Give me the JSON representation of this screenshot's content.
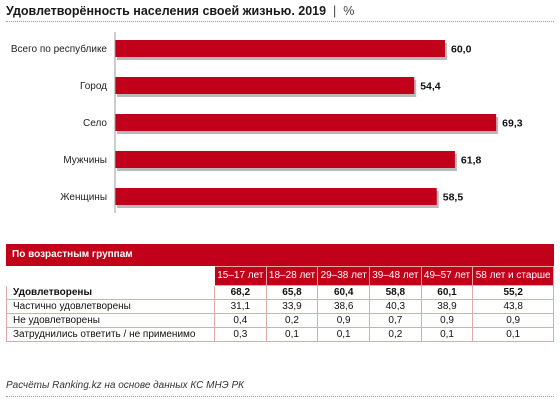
{
  "title": "Удовлетворённость населения своей жизнью. 2019",
  "unit": "%",
  "chart_data": {
    "type": "bar",
    "orientation": "horizontal",
    "categories": [
      "Всего по республике",
      "Город",
      "Село",
      "Мужчины",
      "Женщины"
    ],
    "values": [
      60.0,
      54.4,
      69.3,
      61.8,
      58.5
    ],
    "value_labels": [
      "60,0",
      "54,4",
      "69,3",
      "61,8",
      "58,5"
    ],
    "xlim": [
      0,
      70
    ],
    "color": "#c1001a",
    "grid": false
  },
  "age_table": {
    "heading": "По возрастным группам",
    "columns": [
      "15–17 лет",
      "18–28 лет",
      "29–38 лет",
      "39–48 лет",
      "49–57 лет",
      "58 лет и старше"
    ],
    "rows": [
      {
        "label": "Удовлетворены",
        "values": [
          "68,2",
          "65,8",
          "60,4",
          "58,8",
          "60,1",
          "55,2"
        ],
        "bold": true
      },
      {
        "label": "Частично удовлетворены",
        "values": [
          "31,1",
          "33,9",
          "38,6",
          "40,3",
          "38,9",
          "43,8"
        ],
        "bold": false
      },
      {
        "label": "Не удовлетворены",
        "values": [
          "0,4",
          "0,2",
          "0,9",
          "0,7",
          "0,9",
          "0,9"
        ],
        "bold": false
      },
      {
        "label": "Затруднились ответить / не применимо",
        "values": [
          "0,3",
          "0,1",
          "0,1",
          "0,2",
          "0,1",
          "0,1"
        ],
        "bold": false
      }
    ]
  },
  "footer": "Расчёты Ranking.kz на основе данных КС МНЭ РК"
}
